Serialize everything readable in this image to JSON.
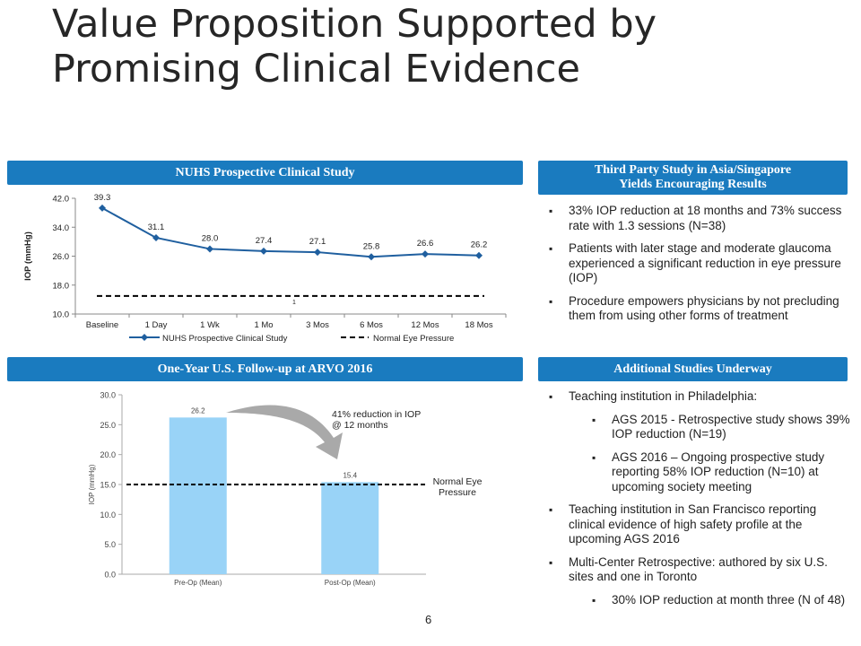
{
  "title_line1": "Value Proposition Supported by",
  "title_line2": "Promising Clinical Evidence",
  "page_number": "6",
  "nuhs": {
    "header": "NUHS Prospective Clinical  Study",
    "legend_series": "NUHS Prospective Clinical Study",
    "legend_normal": "Normal Eye Pressure",
    "dash_label": "1"
  },
  "arvo": {
    "header": "One-Year U.S. Follow-up  at ARVO 2016",
    "annotation_line1": "41% reduction in IOP",
    "annotation_line2": "@ 12 months",
    "normal_line1": "Normal Eye",
    "normal_line2": "Pressure"
  },
  "third": {
    "header_line1": "Third Party Study in Asia/Singapore",
    "header_line2": "Yields Encouraging  Results",
    "bullets": [
      "33% IOP reduction at 18 months and 73% success rate with 1.3 sessions (N=38)",
      "Patients with later stage and moderate glaucoma experienced a significant reduction in eye pressure (IOP)",
      "Procedure empowers physicians by not precluding them from using other forms of treatment"
    ]
  },
  "additional": {
    "header": "Additional  Studies Underway",
    "bullets": [
      "Teaching institution in Philadelphia:",
      "AGS 2015 - Retrospective study shows 39% IOP reduction (N=19)",
      "AGS 2016 – Ongoing prospective study reporting 58% IOP reduction (N=10) at upcoming society meeting",
      "Teaching institution in San Francisco reporting clinical  evidence of high safety profile at the upcoming AGS 2016",
      "Multi-Center Retrospective: authored by six U.S. sites and one in Toronto",
      "30% IOP reduction at month three (N of 48)"
    ]
  },
  "colors": {
    "accent": "#1a7bbf",
    "series": "#1f5f9f",
    "bar_fill": "#99d3f7"
  },
  "chart_data": [
    {
      "type": "line",
      "categories": [
        "Baseline",
        "1 Day",
        "1 Wk",
        "1 Mo",
        "3 Mos",
        "6 Mos",
        "12 Mos",
        "18 Mos"
      ],
      "series": [
        {
          "name": "NUHS Prospective Clinical Study",
          "values": [
            39.3,
            31.1,
            28.0,
            27.4,
            27.1,
            25.8,
            26.6,
            26.2
          ]
        },
        {
          "name": "Normal Eye Pressure",
          "values": [
            15,
            15,
            15,
            15,
            15,
            15,
            15,
            15
          ]
        }
      ],
      "data_labels": [
        "39.3",
        "31.1",
        "28.0",
        "27.4",
        "27.1",
        "25.8",
        "26.6",
        "26.2"
      ],
      "ylabel": "IOP (mmHg)",
      "ylim": [
        10.0,
        42.0
      ],
      "yticks": [
        "10.0",
        "18.0",
        "26.0",
        "34.0",
        "42.0"
      ],
      "legend": "bottom"
    },
    {
      "type": "bar",
      "categories": [
        "Pre-Op (Mean)",
        "Post-Op (Mean)"
      ],
      "values": [
        26.2,
        15.4
      ],
      "data_labels": [
        "26.2",
        "15.4"
      ],
      "ylabel": "IOP (mmHg)",
      "ylim": [
        0.0,
        30.0
      ],
      "yticks": [
        "0.0",
        "5.0",
        "10.0",
        "15.0",
        "20.0",
        "25.0",
        "30.0"
      ],
      "reference_line": 15.0
    }
  ]
}
